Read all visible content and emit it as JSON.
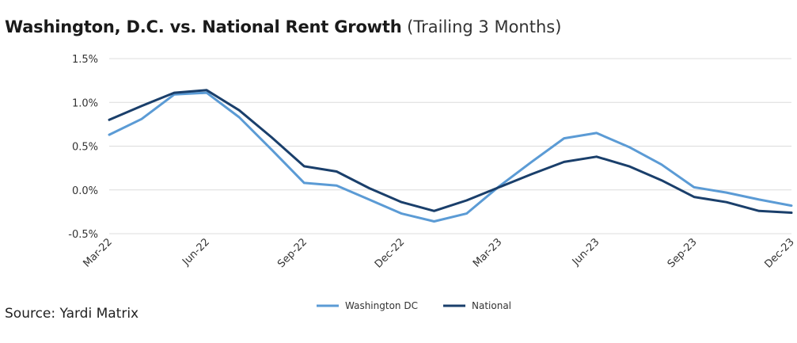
{
  "title": "Washington, D.C. vs. National Rent Growth",
  "subtitle": "(Trailing 3 Months)",
  "source": "Source: Yardi Matrix",
  "chart_data": {
    "type": "line",
    "x": [
      "Mar-22",
      "Apr-22",
      "May-22",
      "Jun-22",
      "Jul-22",
      "Aug-22",
      "Sep-22",
      "Oct-22",
      "Nov-22",
      "Dec-22",
      "Jan-23",
      "Feb-23",
      "Mar-23",
      "Apr-23",
      "May-23",
      "Jun-23",
      "Jul-23",
      "Aug-23",
      "Sep-23",
      "Oct-23",
      "Nov-23",
      "Dec-23"
    ],
    "x_tick_labels": [
      "Mar-22",
      "Jun-22",
      "Sep-22",
      "Dec-22",
      "Mar-23",
      "Jun-23",
      "Sep-23",
      "Dec-23"
    ],
    "y_tick_labels": [
      "1.5%",
      "1.0%",
      "0.5%",
      "0.0%",
      "-0.5%"
    ],
    "ylim": [
      -0.5,
      1.5
    ],
    "grid": "horizontal",
    "legend_position": "bottom",
    "series": [
      {
        "name": "Washington DC",
        "color": "#5b9bd5",
        "values": [
          0.63,
          0.81,
          1.09,
          1.11,
          0.83,
          0.46,
          0.08,
          0.05,
          -0.11,
          -0.27,
          -0.36,
          -0.27,
          0.04,
          0.32,
          0.59,
          0.65,
          0.49,
          0.29,
          0.03,
          -0.03,
          -0.11,
          -0.18
        ]
      },
      {
        "name": "National",
        "color": "#1a3f6b",
        "values": [
          0.8,
          0.96,
          1.11,
          1.14,
          0.91,
          0.6,
          0.27,
          0.21,
          0.02,
          -0.14,
          -0.24,
          -0.12,
          0.03,
          0.18,
          0.32,
          0.38,
          0.27,
          0.11,
          -0.08,
          -0.14,
          -0.24,
          -0.26
        ]
      }
    ]
  }
}
